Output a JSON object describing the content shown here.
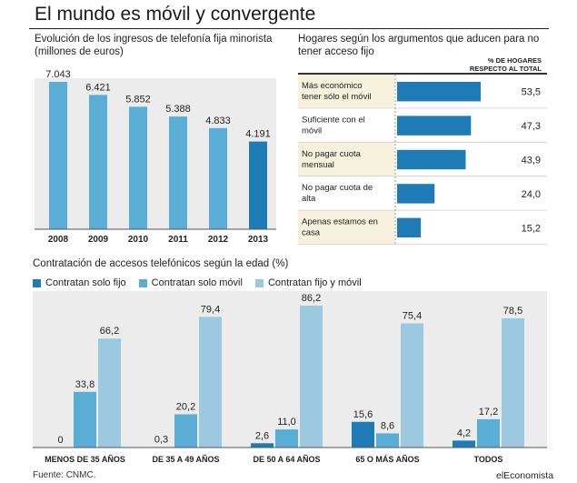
{
  "title": "El mundo es móvil y convergente",
  "source": "Fuente: CNMC.",
  "brand": "elEconomista",
  "colors": {
    "dark": "#1e7bb6",
    "mid": "#5aaed6",
    "light": "#9cc8e0",
    "band": "#ececec",
    "bandAlt": "#f6f1dc"
  },
  "chart_data": [
    {
      "type": "bar",
      "title": "Evolución de los ingresos de telefonía fija minorista (millones de euros)",
      "categories": [
        "2008",
        "2009",
        "2010",
        "2011",
        "2012",
        "2013"
      ],
      "values": [
        7043,
        6421,
        5852,
        5388,
        4833,
        4191
      ],
      "value_labels": [
        "7.043",
        "6.421",
        "5.852",
        "5.388",
        "4.833",
        "4.191"
      ],
      "highlight_index": 5,
      "ylim": [
        0,
        7043
      ]
    },
    {
      "type": "bar",
      "orientation": "horizontal",
      "title": "Hogares según los argumentos que aducen para no tener acceso fijo",
      "column_header": [
        "% DE HOGARES",
        "RESPECTO AL TOTAL"
      ],
      "categories": [
        [
          "Más económico",
          "tener sólo el móvil"
        ],
        [
          "Suficiente con el",
          "móvil"
        ],
        [
          "No pagar cuota",
          "mensual"
        ],
        [
          "No pagar cuota de",
          "alta"
        ],
        [
          "Apenas estamos en",
          "casa"
        ]
      ],
      "values": [
        53.5,
        47.3,
        43.9,
        24.0,
        15.2
      ],
      "value_labels": [
        "53,5",
        "47,3",
        "43,9",
        "24,0",
        "15,2"
      ],
      "xlim": [
        0,
        53.5
      ]
    },
    {
      "type": "bar",
      "title": "Contratación de accesos telefónicos según la edad (%)",
      "categories": [
        "MENOS DE 35 AÑOS",
        "DE 35 A 49 AÑOS",
        "DE 50 A 64 AÑOS",
        "65 O MÁS AÑOS",
        "TODOS"
      ],
      "series": [
        {
          "name": "Contratan solo fijo",
          "values": [
            0,
            0.3,
            2.6,
            15.6,
            4.2
          ],
          "labels": [
            "0",
            "0,3",
            "2,6",
            "15,6",
            "4,2"
          ]
        },
        {
          "name": "Contratan solo móvil",
          "values": [
            33.8,
            20.2,
            11.0,
            8.6,
            17.2
          ],
          "labels": [
            "33,8",
            "20,2",
            "11,0",
            "8,6",
            "17,2"
          ]
        },
        {
          "name": "Contratan fijo y móvil",
          "values": [
            66.2,
            79.4,
            86.2,
            75.4,
            78.5
          ],
          "labels": [
            "66,2",
            "79,4",
            "86,2",
            "75,4",
            "78,5"
          ]
        }
      ],
      "ylim": [
        0,
        86.2
      ],
      "legend": "top-left"
    }
  ]
}
